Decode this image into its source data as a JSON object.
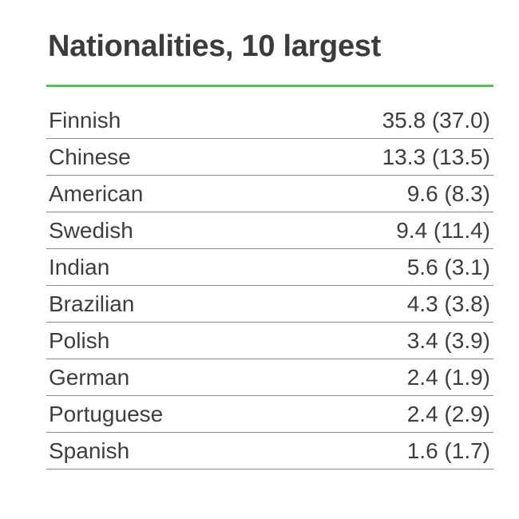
{
  "title": "Nationalities, 10 largest",
  "accent_color": "#5cb85c",
  "rows": [
    {
      "nationality": "Finnish",
      "value": "35.8 (37.0)"
    },
    {
      "nationality": "Chinese",
      "value": "13.3 (13.5)"
    },
    {
      "nationality": "American",
      "value": "9.6 (8.3)"
    },
    {
      "nationality": "Swedish",
      "value": "9.4 (11.4)"
    },
    {
      "nationality": "Indian",
      "value": "5.6 (3.1)"
    },
    {
      "nationality": "Brazilian",
      "value": "4.3 (3.8)"
    },
    {
      "nationality": "Polish",
      "value": "3.4 (3.9)"
    },
    {
      "nationality": "German",
      "value": "2.4 (1.9)"
    },
    {
      "nationality": "Portuguese",
      "value": "2.4 (2.9)"
    },
    {
      "nationality": "Spanish",
      "value": "1.6 (1.7)"
    }
  ]
}
